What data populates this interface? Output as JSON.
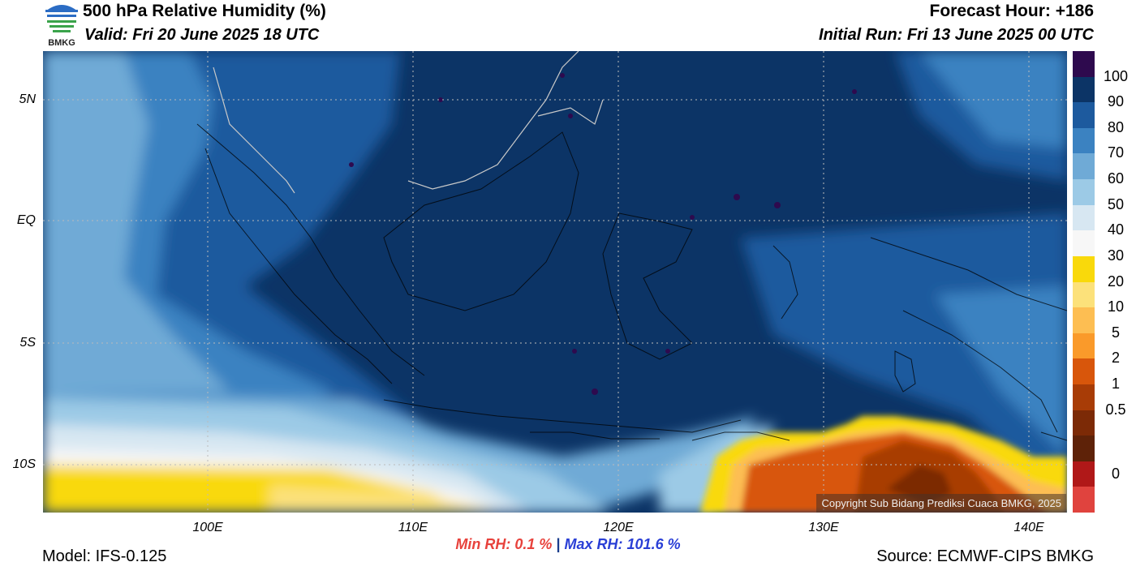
{
  "header": {
    "title": "500 hPa Relative Humidity (%)",
    "valid": "Valid: Fri 20 June 2025 18 UTC",
    "forecast_hour": "Forecast Hour: +186",
    "initial_run": "Initial Run: Fri 13 June 2025 00 UTC",
    "logo_text": "BMKG"
  },
  "map": {
    "lat_labels": [
      "5N",
      "EQ",
      "5S",
      "10S"
    ],
    "lon_labels": [
      "100E",
      "110E",
      "120E",
      "130E",
      "140E"
    ],
    "copyright": "Copyright Sub Bidang Prediksi Cuaca BMKG, 2025"
  },
  "colorbar": {
    "labels": [
      "100",
      "90",
      "80",
      "70",
      "60",
      "50",
      "40",
      "30",
      "20",
      "10",
      "5",
      "2",
      "1",
      "0.5",
      "0"
    ],
    "colors": [
      "#2e0a4e",
      "#0c3466",
      "#1d5a9e",
      "#3b82c1",
      "#6faad6",
      "#9ccae6",
      "#d7e7f2",
      "#f7f7f7",
      "#f9d90b",
      "#fce17a",
      "#fdbe52",
      "#fa9a2a",
      "#d8560b",
      "#a83c06",
      "#7c2a06",
      "#5e2208",
      "#b01818",
      "#e0433e"
    ]
  },
  "stats": {
    "min_label": "Min RH:",
    "min_value": "0.1 %",
    "separator": "|",
    "max_label": "Max RH:",
    "max_value": "101.6 %"
  },
  "footer": {
    "model": "Model: IFS-0.125",
    "source": "Source: ECMWF-CIPS BMKG"
  }
}
